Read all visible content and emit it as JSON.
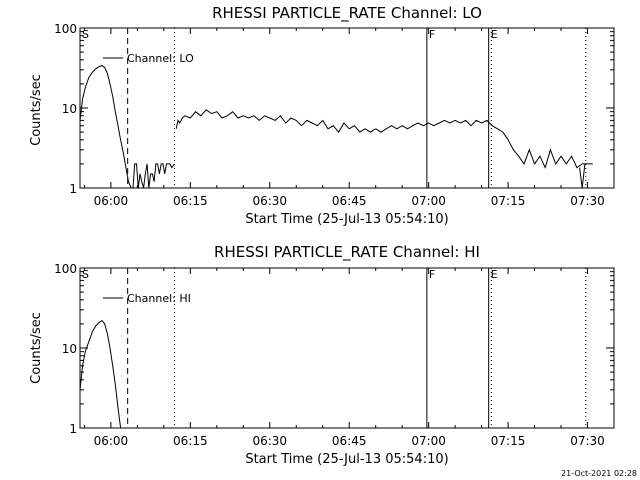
{
  "chart_data": [
    {
      "type": "line",
      "title": "RHESSI PARTICLE_RATE Channel: LO",
      "xlabel": "Start Time (25-Jul-13 05:54:10)",
      "ylabel": "Counts/sec",
      "y_scale": "log",
      "ylim": [
        1,
        100
      ],
      "xlim": [
        "05:54:10",
        "07:35:00"
      ],
      "x_ticks": [
        "06:00",
        "06:15",
        "06:30",
        "06:45",
        "07:00",
        "07:15",
        "07:30"
      ],
      "y_ticks": [
        "1",
        "10",
        "100"
      ],
      "legend": "Channel: LO",
      "markers": [
        {
          "label": "S",
          "time": "05:54:10",
          "style": "solid"
        },
        {
          "label": "",
          "time": "06:03:10",
          "style": "dashed"
        },
        {
          "label": "",
          "time": "06:12:00",
          "style": "dotted"
        },
        {
          "label": "F",
          "time": "06:59:40",
          "style": "solid"
        },
        {
          "label": "E",
          "time": "07:11:20",
          "style": "solid"
        },
        {
          "label": "",
          "time": "07:11:50",
          "style": "dotted"
        },
        {
          "label": "",
          "time": "07:29:40",
          "style": "dotted"
        }
      ],
      "series": [
        {
          "segments": [
            {
              "x": [
                "05:54:10",
                "05:54:40",
                "05:55:10",
                "05:55:50",
                "05:56:30",
                "05:57:10",
                "05:57:50",
                "05:58:20",
                "05:58:50",
                "05:59:20",
                "05:59:50",
                "06:00:20",
                "06:00:50",
                "06:01:20",
                "06:01:50",
                "06:02:20",
                "06:02:50",
                "06:03:20",
                "06:03:50",
                "06:04:10",
                "06:04:30",
                "06:04:50",
                "06:05:10",
                "06:05:30",
                "06:05:50",
                "06:06:10",
                "06:06:30",
                "06:06:50",
                "06:07:10",
                "06:07:30",
                "06:07:50",
                "06:08:10",
                "06:08:30",
                "06:08:50",
                "06:09:10",
                "06:09:30",
                "06:09:50",
                "06:10:10",
                "06:10:30",
                "06:10:50",
                "06:11:10",
                "06:11:30",
                "06:12:00"
              ],
              "y": [
                7,
                13,
                18,
                24,
                28,
                31,
                33,
                34,
                32,
                27,
                20,
                14,
                9,
                6,
                4,
                2.8,
                1.8,
                1.2,
                1,
                1,
                2,
                2,
                1,
                1.5,
                1.2,
                1,
                1.5,
                2,
                1,
                1.5,
                1.5,
                1.2,
                2,
                2,
                1.5,
                2,
                2,
                1.5,
                2,
                2,
                2,
                1.8,
                2
              ]
            },
            {
              "x": [
                "06:12:20",
                "06:12:40",
                "06:13:00",
                "06:13:30",
                "06:14:00",
                "06:15:00",
                "06:16:00",
                "06:17:00",
                "06:18:00",
                "06:19:00",
                "06:20:00",
                "06:21:00",
                "06:22:00",
                "06:23:00",
                "06:24:00",
                "06:25:00",
                "06:26:00",
                "06:27:00",
                "06:28:00",
                "06:29:00",
                "06:30:00",
                "06:31:00",
                "06:32:00",
                "06:33:00",
                "06:34:00",
                "06:35:00",
                "06:36:00",
                "06:37:00",
                "06:38:00",
                "06:39:00",
                "06:40:00",
                "06:41:00",
                "06:42:00",
                "06:43:00",
                "06:44:00",
                "06:45:00",
                "06:46:00",
                "06:47:00",
                "06:48:00",
                "06:49:00",
                "06:50:00",
                "06:51:00",
                "06:52:00",
                "06:53:00",
                "06:54:00",
                "06:55:00",
                "06:56:00",
                "06:57:00",
                "06:58:00",
                "06:59:00",
                "07:00:00",
                "07:01:00",
                "07:02:00",
                "07:03:00",
                "07:04:00",
                "07:05:00",
                "07:06:00",
                "07:07:00",
                "07:08:00",
                "07:09:00",
                "07:10:00",
                "07:11:00",
                "07:12:00",
                "07:13:00",
                "07:14:00",
                "07:15:00",
                "07:16:00",
                "07:17:00",
                "07:18:00",
                "07:19:00",
                "07:20:00",
                "07:21:00",
                "07:22:00",
                "07:23:00",
                "07:24:00",
                "07:25:00",
                "07:26:00",
                "07:27:00",
                "07:28:00",
                "07:29:00",
                "07:30:00",
                "07:31:00"
              ],
              "y": [
                5.5,
                7,
                6.5,
                7.5,
                8,
                7.5,
                9,
                8,
                9.5,
                8.5,
                9,
                7.5,
                8,
                9,
                7.5,
                8,
                7.5,
                8,
                7,
                8,
                7.5,
                7,
                8,
                6.5,
                7.5,
                7,
                6,
                7,
                6.5,
                6,
                7,
                5.5,
                6,
                5,
                6.5,
                5.5,
                6,
                5,
                5.5,
                5,
                5.5,
                5,
                5.5,
                6,
                5.5,
                6,
                5.5,
                6,
                6.5,
                6,
                6.5,
                6,
                6.5,
                7,
                6.5,
                7,
                6.5,
                7,
                6,
                7,
                6.5,
                7,
                6,
                5.5,
                5,
                4,
                3,
                2.5,
                2,
                3,
                2,
                2.5,
                1.8,
                3,
                2,
                2.5,
                2,
                2.5,
                1.8,
                2,
                2,
                2
              ]
            },
            {
              "x": [
                "07:28:30",
                "07:29:00",
                "07:29:30"
              ],
              "y": [
                1.8,
                1,
                2
              ]
            }
          ]
        }
      ]
    },
    {
      "type": "line",
      "title": "RHESSI PARTICLE_RATE Channel: HI",
      "xlabel": "Start Time (25-Jul-13 05:54:10)",
      "ylabel": "Counts/sec",
      "y_scale": "log",
      "ylim": [
        1,
        100
      ],
      "xlim": [
        "05:54:10",
        "07:35:00"
      ],
      "x_ticks": [
        "06:00",
        "06:15",
        "06:30",
        "06:45",
        "07:00",
        "07:15",
        "07:30"
      ],
      "y_ticks": [
        "1",
        "10",
        "100"
      ],
      "legend": "Channel: HI",
      "markers": [
        {
          "label": "S",
          "time": "05:54:10",
          "style": "solid"
        },
        {
          "label": "",
          "time": "06:03:10",
          "style": "dashed"
        },
        {
          "label": "",
          "time": "06:12:00",
          "style": "dotted"
        },
        {
          "label": "F",
          "time": "06:59:40",
          "style": "solid"
        },
        {
          "label": "E",
          "time": "07:11:20",
          "style": "solid"
        },
        {
          "label": "",
          "time": "07:11:50",
          "style": "dotted"
        },
        {
          "label": "",
          "time": "07:29:40",
          "style": "dotted"
        }
      ],
      "series": [
        {
          "segments": [
            {
              "x": [
                "05:54:10",
                "05:54:40",
                "05:55:10",
                "05:55:50",
                "05:56:30",
                "05:57:10",
                "05:57:50",
                "05:58:20",
                "05:58:50",
                "05:59:20",
                "05:59:50",
                "06:00:20",
                "06:00:50",
                "06:01:20",
                "06:01:50"
              ],
              "y": [
                3,
                6,
                9,
                12,
                16,
                19,
                21,
                22,
                20,
                15,
                10,
                6,
                3.5,
                1.8,
                1
              ]
            }
          ]
        }
      ]
    }
  ],
  "footer": {
    "timestamp": "21-Oct-2021 02:28"
  }
}
